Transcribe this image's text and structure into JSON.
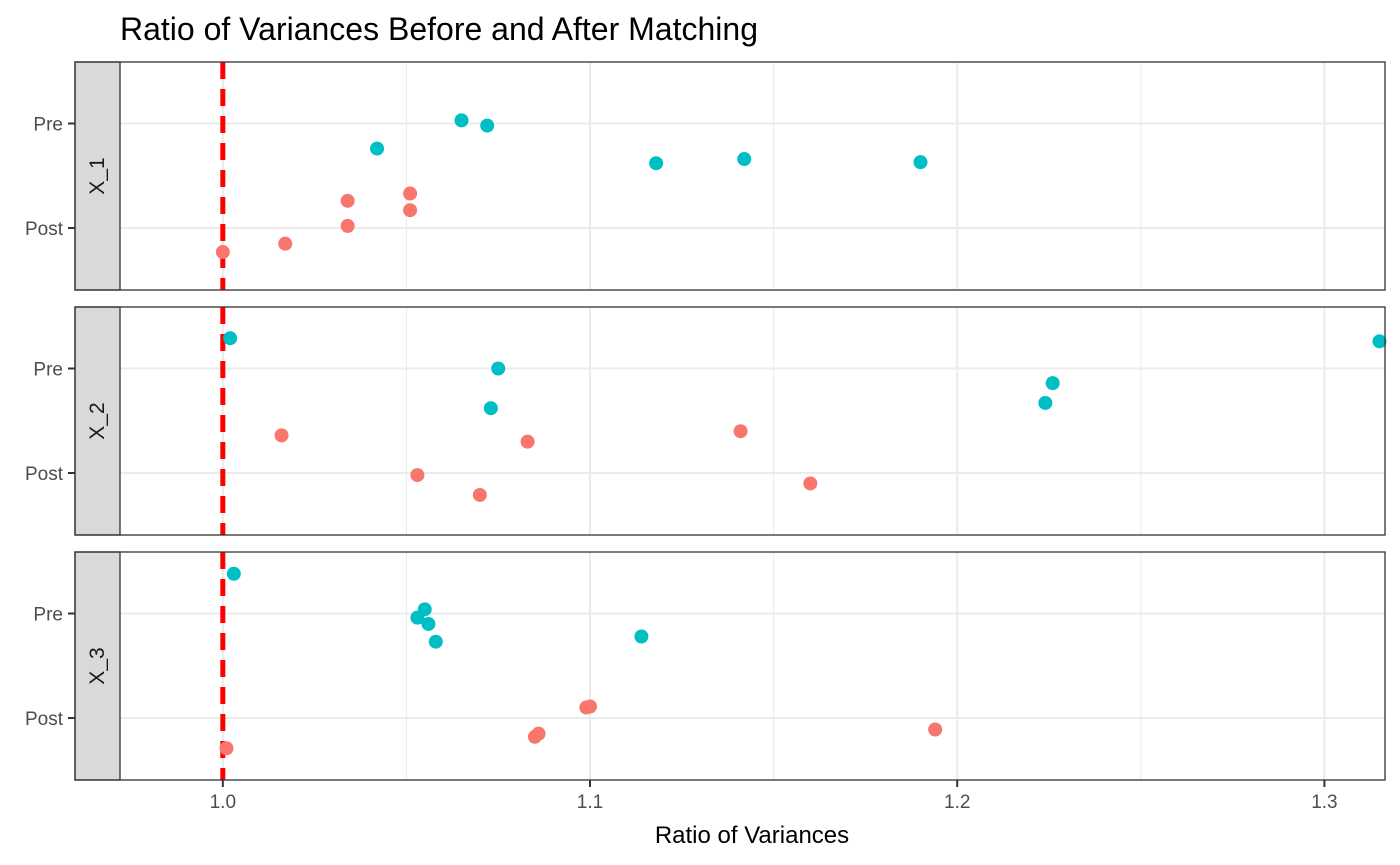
{
  "chart_data": {
    "type": "scatter",
    "title": "Ratio of Variances Before and After Matching",
    "xlabel": "Ratio of Variances",
    "ylabel": "",
    "xlim": [
      0.972,
      1.3165
    ],
    "x_ticks": [
      1.0,
      1.1,
      1.2,
      1.3
    ],
    "x_tick_labels": [
      "1.0",
      "1.1",
      "1.2",
      "1.3"
    ],
    "y_categories": [
      "Post",
      "Pre"
    ],
    "grid": true,
    "legend": "none",
    "reference_line": {
      "x": 1.0,
      "style": "dashed",
      "color": "#FF0000"
    },
    "colors": {
      "Pre": "#00BFC4",
      "Post": "#F8766D",
      "strip_fill": "#D9D9D9",
      "grid": "#EBEBEB"
    },
    "facets": [
      {
        "label": "X_1",
        "points": [
          {
            "group": "Pre",
            "x": 1.065,
            "y": 2.03
          },
          {
            "group": "Pre",
            "x": 1.072,
            "y": 1.98
          },
          {
            "group": "Pre",
            "x": 1.042,
            "y": 1.76
          },
          {
            "group": "Pre",
            "x": 1.118,
            "y": 1.62
          },
          {
            "group": "Pre",
            "x": 1.142,
            "y": 1.66
          },
          {
            "group": "Pre",
            "x": 1.19,
            "y": 1.63
          },
          {
            "group": "Post",
            "x": 1.051,
            "y": 1.33
          },
          {
            "group": "Post",
            "x": 1.034,
            "y": 1.26
          },
          {
            "group": "Post",
            "x": 1.051,
            "y": 1.17
          },
          {
            "group": "Post",
            "x": 1.034,
            "y": 1.02
          },
          {
            "group": "Post",
            "x": 1.017,
            "y": 0.85
          },
          {
            "group": "Post",
            "x": 1.0,
            "y": 0.77
          }
        ]
      },
      {
        "label": "X_2",
        "points": [
          {
            "group": "Pre",
            "x": 1.002,
            "y": 2.29
          },
          {
            "group": "Pre",
            "x": 1.075,
            "y": 2.0
          },
          {
            "group": "Pre",
            "x": 1.073,
            "y": 1.62
          },
          {
            "group": "Pre",
            "x": 1.226,
            "y": 1.86
          },
          {
            "group": "Pre",
            "x": 1.224,
            "y": 1.67
          },
          {
            "group": "Pre",
            "x": 1.315,
            "y": 2.26
          },
          {
            "group": "Post",
            "x": 1.016,
            "y": 1.36
          },
          {
            "group": "Post",
            "x": 1.083,
            "y": 1.3
          },
          {
            "group": "Post",
            "x": 1.141,
            "y": 1.4
          },
          {
            "group": "Post",
            "x": 1.053,
            "y": 0.98
          },
          {
            "group": "Post",
            "x": 1.07,
            "y": 0.79
          },
          {
            "group": "Post",
            "x": 1.16,
            "y": 0.9
          }
        ]
      },
      {
        "label": "X_3",
        "points": [
          {
            "group": "Pre",
            "x": 1.003,
            "y": 2.38
          },
          {
            "group": "Pre",
            "x": 1.055,
            "y": 2.04
          },
          {
            "group": "Pre",
            "x": 1.053,
            "y": 1.96
          },
          {
            "group": "Pre",
            "x": 1.056,
            "y": 1.9
          },
          {
            "group": "Pre",
            "x": 1.058,
            "y": 1.73
          },
          {
            "group": "Pre",
            "x": 1.114,
            "y": 1.78
          },
          {
            "group": "Post",
            "x": 1.099,
            "y": 1.1
          },
          {
            "group": "Post",
            "x": 1.1,
            "y": 1.11
          },
          {
            "group": "Post",
            "x": 1.086,
            "y": 0.85
          },
          {
            "group": "Post",
            "x": 1.085,
            "y": 0.82
          },
          {
            "group": "Post",
            "x": 1.194,
            "y": 0.89
          },
          {
            "group": "Post",
            "x": 1.001,
            "y": 0.71
          }
        ]
      }
    ]
  }
}
